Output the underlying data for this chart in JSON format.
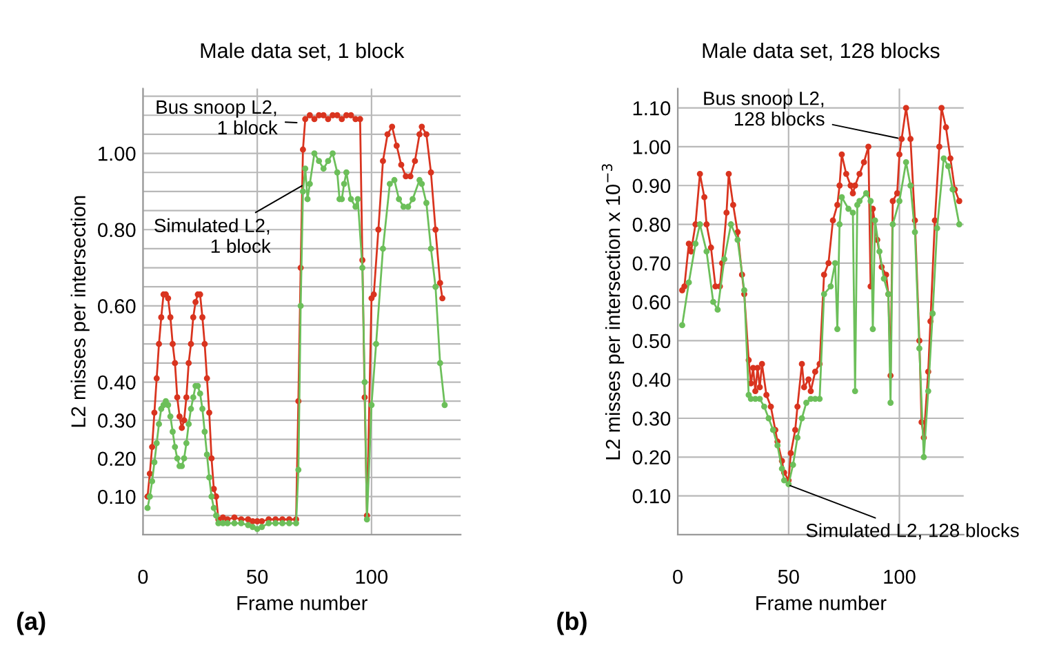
{
  "chart_data": [
    {
      "type": "line",
      "title": "Male data set, 1 block",
      "xlabel": "Frame number",
      "ylabel": "L2 misses per intersection",
      "xlim": [
        0,
        139
      ],
      "xticks": [
        0,
        50,
        100
      ],
      "ylim": [
        0,
        1.17
      ],
      "yticks": [
        {
          "value": 0.05,
          "label": null
        },
        {
          "value": 0.1,
          "label": "0.10"
        },
        {
          "value": 0.15,
          "label": null
        },
        {
          "value": 0.2,
          "label": "0.20"
        },
        {
          "value": 0.25,
          "label": null
        },
        {
          "value": 0.3,
          "label": "0.30"
        },
        {
          "value": 0.35,
          "label": null
        },
        {
          "value": 0.4,
          "label": "0.40"
        },
        {
          "value": 0.45,
          "label": null
        },
        {
          "value": 0.5,
          "label": null
        },
        {
          "value": 0.55,
          "label": null
        },
        {
          "value": 0.6,
          "label": "0.60"
        },
        {
          "value": 0.65,
          "label": null
        },
        {
          "value": 0.7,
          "label": null
        },
        {
          "value": 0.75,
          "label": null
        },
        {
          "value": 0.8,
          "label": "0.80"
        },
        {
          "value": 0.85,
          "label": null
        },
        {
          "value": 0.9,
          "label": null
        },
        {
          "value": 0.95,
          "label": null
        },
        {
          "value": 1.0,
          "label": "1.00"
        },
        {
          "value": 1.05,
          "label": null
        },
        {
          "value": 1.1,
          "label": null
        },
        {
          "value": 1.15,
          "label": null
        }
      ],
      "grid": true,
      "legend": false,
      "marker": "circle",
      "line_style": "solid",
      "series": [
        {
          "color": "#d9341f",
          "x": [
            2,
            3,
            4,
            5,
            6,
            7,
            8,
            9,
            10,
            11,
            12,
            13,
            14,
            15,
            16,
            17,
            18,
            19,
            20,
            21,
            22,
            23,
            24,
            25,
            26,
            27,
            28,
            29,
            30,
            31,
            32,
            33,
            35,
            37,
            40,
            43,
            46,
            48,
            50,
            52,
            55,
            58,
            61,
            64,
            67,
            68,
            69,
            70,
            71,
            73,
            75,
            77,
            79,
            81,
            83,
            85,
            87,
            89,
            91,
            93,
            95,
            96,
            97,
            98,
            100,
            101,
            103,
            105,
            107,
            109,
            111,
            113,
            115,
            117,
            119,
            121,
            122,
            124,
            126,
            128,
            130,
            131
          ],
          "values": [
            0.1,
            0.16,
            0.23,
            0.32,
            0.41,
            0.5,
            0.57,
            0.63,
            0.63,
            0.62,
            0.57,
            0.5,
            0.45,
            0.36,
            0.31,
            0.28,
            0.3,
            0.36,
            0.45,
            0.5,
            0.57,
            0.61,
            0.63,
            0.63,
            0.57,
            0.5,
            0.41,
            0.32,
            0.2,
            0.12,
            0.1,
            0.04,
            0.045,
            0.04,
            0.045,
            0.04,
            0.04,
            0.035,
            0.035,
            0.035,
            0.04,
            0.04,
            0.04,
            0.04,
            0.04,
            0.35,
            0.7,
            1.01,
            1.09,
            1.1,
            1.09,
            1.1,
            1.1,
            1.09,
            1.1,
            1.1,
            1.09,
            1.1,
            1.1,
            1.09,
            1.09,
            0.72,
            0.36,
            0.05,
            0.62,
            0.63,
            0.8,
            0.98,
            1.05,
            1.07,
            1.02,
            0.97,
            0.94,
            0.94,
            0.98,
            1.05,
            1.07,
            1.05,
            0.95,
            0.8,
            0.66,
            0.62
          ]
        },
        {
          "color": "#6cbf5a",
          "x": [
            2,
            3,
            4,
            5,
            6,
            7,
            8,
            9,
            10,
            11,
            12,
            13,
            14,
            15,
            16,
            17,
            18,
            19,
            20,
            21,
            22,
            23,
            24,
            25,
            26,
            27,
            28,
            29,
            30,
            31,
            32,
            33,
            35,
            37,
            40,
            43,
            46,
            48,
            50,
            52,
            55,
            58,
            61,
            64,
            67,
            68,
            69,
            70,
            71,
            72,
            73,
            75,
            77,
            79,
            81,
            83,
            85,
            86,
            87,
            88,
            89,
            91,
            93,
            94,
            96,
            97,
            98,
            100,
            102,
            105,
            108,
            110,
            112,
            114,
            116,
            118,
            121,
            122,
            124,
            126,
            128,
            130,
            132
          ],
          "values": [
            0.07,
            0.1,
            0.14,
            0.19,
            0.24,
            0.29,
            0.33,
            0.34,
            0.35,
            0.34,
            0.31,
            0.27,
            0.23,
            0.2,
            0.18,
            0.18,
            0.2,
            0.24,
            0.29,
            0.33,
            0.36,
            0.39,
            0.39,
            0.37,
            0.33,
            0.27,
            0.21,
            0.15,
            0.1,
            0.07,
            0.05,
            0.03,
            0.03,
            0.03,
            0.03,
            0.03,
            0.025,
            0.02,
            0.015,
            0.02,
            0.03,
            0.03,
            0.03,
            0.03,
            0.03,
            0.17,
            0.6,
            0.9,
            0.96,
            0.88,
            0.92,
            1.0,
            0.98,
            0.96,
            0.98,
            1.0,
            0.95,
            0.88,
            0.88,
            0.92,
            0.95,
            0.88,
            0.86,
            0.88,
            0.7,
            0.4,
            0.04,
            0.34,
            0.5,
            0.75,
            0.92,
            0.93,
            0.88,
            0.86,
            0.86,
            0.88,
            0.93,
            0.92,
            0.87,
            0.75,
            0.65,
            0.45,
            0.34
          ]
        }
      ],
      "annotations": [
        {
          "text": "Bus snoop L2,\n1 block",
          "x": 69,
          "y": 1.08
        },
        {
          "text": "Simulated L2,\n1 block",
          "x": 71,
          "y": 0.92
        },
        "(a)"
      ]
    },
    {
      "type": "line",
      "title": "Male data set, 128 blocks",
      "xlabel": "Frame number",
      "ylabel": "L2 misses per intersection x 10$^{−3}$",
      "xlim": [
        0,
        129
      ],
      "xticks": [
        0,
        50,
        100
      ],
      "ylim": [
        0,
        1.15
      ],
      "yticks": [
        {
          "value": 0.1,
          "label": "0.10"
        },
        {
          "value": 0.2,
          "label": "0.20"
        },
        {
          "value": 0.3,
          "label": "0.30"
        },
        {
          "value": 0.4,
          "label": "0.40"
        },
        {
          "value": 0.5,
          "label": "0.50"
        },
        {
          "value": 0.6,
          "label": "0.60"
        },
        {
          "value": 0.7,
          "label": "0.70"
        },
        {
          "value": 0.8,
          "label": "0.80"
        },
        {
          "value": 0.9,
          "label": "0.90"
        },
        {
          "value": 1.0,
          "label": "1.00"
        },
        {
          "value": 1.1,
          "label": "1.10"
        }
      ],
      "grid": true,
      "legend": false,
      "marker": "circle",
      "line_style": "solid",
      "series": [
        {
          "color": "#d9341f",
          "x": [
            2,
            3,
            5,
            6,
            8,
            10,
            12,
            13,
            15,
            17,
            19,
            20,
            22,
            23,
            25,
            27,
            29,
            30,
            32,
            33,
            34,
            35,
            36,
            37,
            38,
            40,
            42,
            44,
            45,
            47,
            48,
            50,
            51,
            53,
            54,
            56,
            57,
            59,
            60,
            62,
            64,
            66,
            68,
            70,
            72,
            73,
            74,
            76,
            78,
            79,
            80,
            82,
            84,
            86,
            87,
            88,
            90,
            92,
            94,
            95,
            96,
            97,
            99,
            100,
            101,
            103,
            105,
            107,
            109,
            110,
            111,
            113,
            114,
            116,
            118,
            119,
            121,
            123,
            125,
            127
          ],
          "values": [
            0.63,
            0.64,
            0.75,
            0.73,
            0.8,
            0.93,
            0.87,
            0.8,
            0.74,
            0.64,
            0.64,
            0.7,
            0.83,
            0.93,
            0.85,
            0.78,
            0.67,
            0.62,
            0.45,
            0.39,
            0.43,
            0.37,
            0.43,
            0.38,
            0.44,
            0.36,
            0.33,
            0.27,
            0.24,
            0.19,
            0.16,
            0.14,
            0.21,
            0.27,
            0.33,
            0.44,
            0.38,
            0.4,
            0.37,
            0.42,
            0.44,
            0.67,
            0.7,
            0.81,
            0.85,
            0.9,
            0.98,
            0.93,
            0.9,
            0.88,
            0.9,
            0.93,
            0.96,
            1.0,
            0.64,
            0.84,
            0.76,
            0.69,
            0.67,
            0.62,
            0.41,
            0.86,
            0.88,
            0.98,
            1.02,
            1.1,
            1.02,
            0.81,
            0.5,
            0.29,
            0.25,
            0.42,
            0.55,
            0.81,
            1.0,
            1.1,
            1.05,
            0.97,
            0.89,
            0.86
          ]
        },
        {
          "color": "#6cbf5a",
          "x": [
            2,
            5,
            8,
            10,
            13,
            16,
            18,
            21,
            24,
            27,
            30,
            32,
            33,
            35,
            37,
            39,
            41,
            43,
            45,
            47,
            48,
            50,
            52,
            54,
            56,
            58,
            60,
            62,
            64,
            66,
            69,
            71,
            72,
            73,
            74,
            77,
            79,
            80,
            81,
            82,
            85,
            87,
            88,
            89,
            91,
            93,
            95,
            96,
            97,
            100,
            103,
            105,
            107,
            109,
            111,
            113,
            115,
            117,
            120,
            122,
            124,
            127
          ],
          "values": [
            0.54,
            0.65,
            0.75,
            0.8,
            0.73,
            0.6,
            0.58,
            0.71,
            0.8,
            0.76,
            0.63,
            0.36,
            0.35,
            0.35,
            0.35,
            0.33,
            0.3,
            0.27,
            0.23,
            0.17,
            0.14,
            0.13,
            0.18,
            0.25,
            0.3,
            0.34,
            0.35,
            0.35,
            0.35,
            0.62,
            0.64,
            0.7,
            0.53,
            0.8,
            0.87,
            0.84,
            0.83,
            0.37,
            0.85,
            0.86,
            0.88,
            0.86,
            0.53,
            0.81,
            0.73,
            0.66,
            0.62,
            0.34,
            0.8,
            0.86,
            0.96,
            0.9,
            0.78,
            0.48,
            0.2,
            0.37,
            0.57,
            0.79,
            0.97,
            0.95,
            0.89,
            0.8
          ]
        }
      ],
      "annotations": [
        {
          "text": "Bus snoop L2,\n128 blocks",
          "x": 101,
          "y": 1.02
        },
        {
          "text": "Simulated L2, 128 blocks",
          "x": 49,
          "y": 0.13
        },
        "(b)"
      ]
    }
  ]
}
